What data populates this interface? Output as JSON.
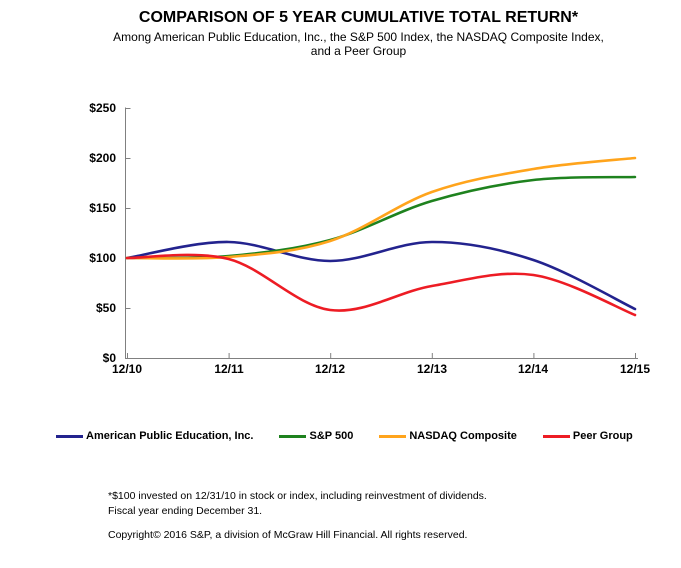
{
  "header": {
    "title": "COMPARISON OF 5 YEAR CUMULATIVE TOTAL RETURN*",
    "subtitle_line1": "Among American Public Education, Inc., the S&P 500 Index, the NASDAQ Composite Index,",
    "subtitle_line2": "and a Peer Group"
  },
  "chart_data": {
    "type": "line",
    "title": "COMPARISON OF 5 YEAR CUMULATIVE TOTAL RETURN*",
    "x_tick_labels": [
      "12/10",
      "12/11",
      "12/12",
      "12/13",
      "12/14",
      "12/15"
    ],
    "y_tick_labels": [
      "$0",
      "$50",
      "$100",
      "$150",
      "$200",
      "$250"
    ],
    "ylim": [
      0,
      250
    ],
    "y_tick_step": 50,
    "grid": false,
    "legend_position": "bottom",
    "axis_color": "#808080",
    "line_smoothing": "spline",
    "series": [
      {
        "name": "American Public Education, Inc.",
        "color": "#23238E",
        "values": [
          100,
          116,
          97,
          116,
          98,
          49
        ]
      },
      {
        "name": "S&P 500",
        "color": "#1E821E",
        "values": [
          100,
          102,
          118,
          157,
          178,
          181
        ]
      },
      {
        "name": "NASDAQ Composite",
        "color": "#FFA41C",
        "values": [
          100,
          101,
          117,
          166,
          189,
          200
        ]
      },
      {
        "name": "Peer Group",
        "color": "#ED1C24",
        "values": [
          100,
          99,
          48,
          72,
          83,
          43
        ]
      }
    ]
  },
  "footnotes": {
    "line1": "*$100 invested on 12/31/10 in stock or index, including reinvestment of dividends.",
    "line2": "Fiscal year ending December 31.",
    "copyright": "Copyright© 2016 S&P, a division of McGraw Hill Financial. All rights reserved."
  }
}
